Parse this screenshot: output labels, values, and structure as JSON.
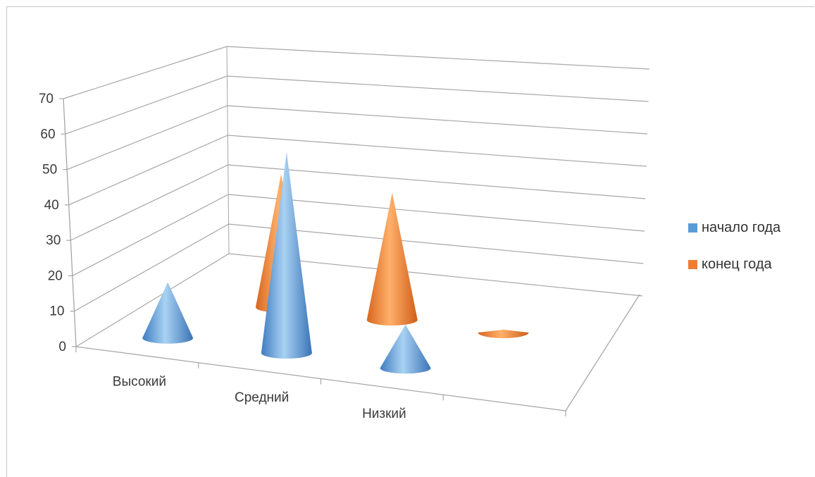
{
  "chart_data": {
    "type": "bar",
    "style": "3d-cone",
    "categories": [
      "Высокий",
      "Средний",
      "Низкий"
    ],
    "series": [
      {
        "name": "начало года",
        "values": [
          18,
          65,
          14
        ],
        "color": "#5b9bd5"
      },
      {
        "name": "конец года",
        "values": [
          46,
          44,
          1
        ],
        "color": "#ed7d31"
      }
    ],
    "yticks": [
      "0",
      "10",
      "20",
      "30",
      "40",
      "50",
      "60",
      "70"
    ],
    "ylim": [
      0,
      70
    ],
    "grid": true,
    "legend_position": "right"
  }
}
